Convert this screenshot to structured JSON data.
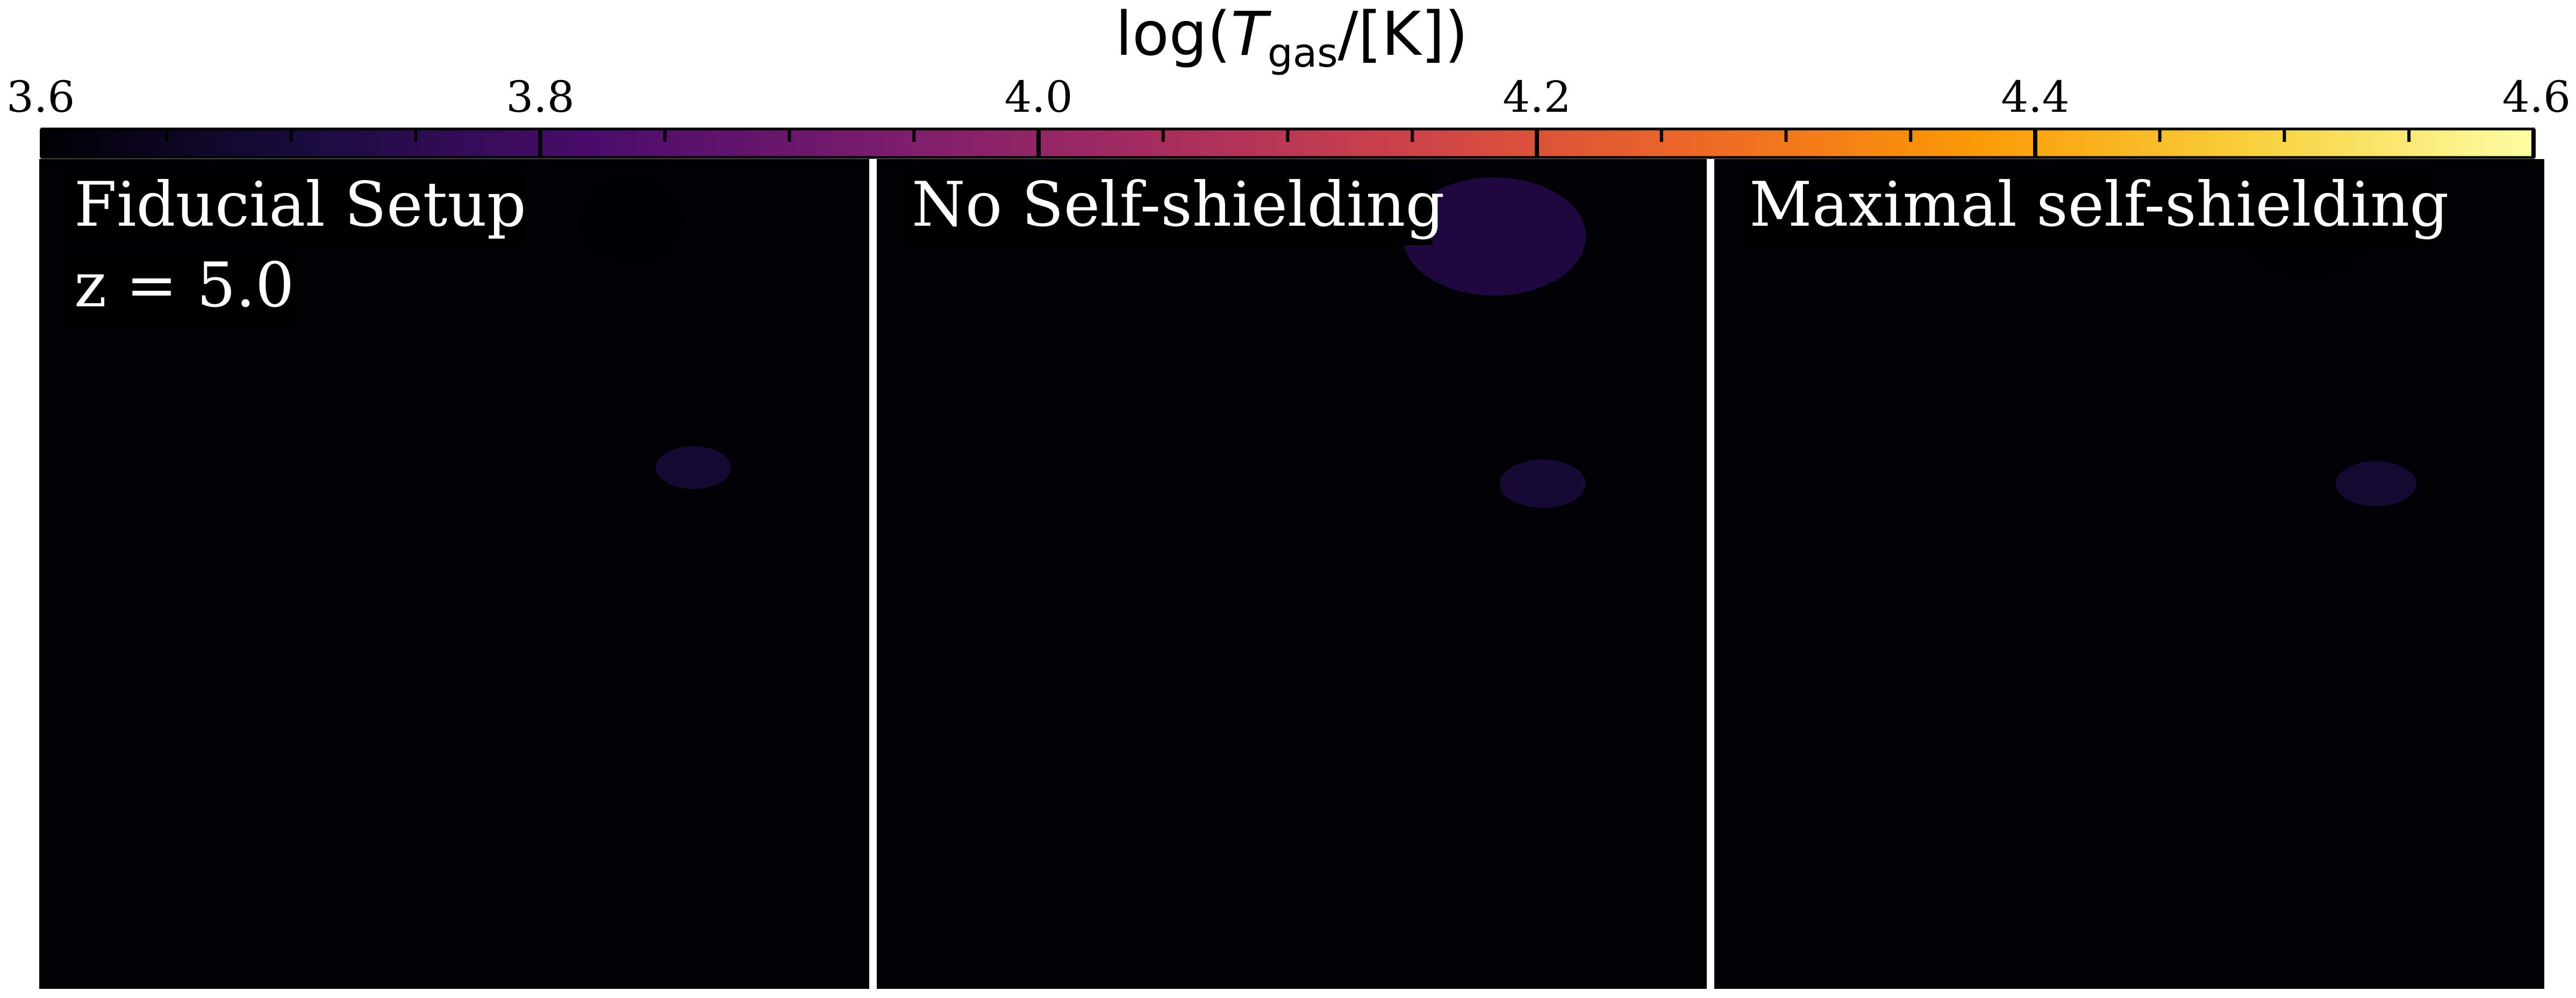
{
  "colorbar": {
    "label_main": "log(",
    "label_var": "T",
    "label_sub": "gas",
    "label_rest": "/[K])",
    "colormap": "inferno",
    "range": [
      3.6,
      4.6
    ],
    "major_ticks": [
      "3.6",
      "3.8",
      "4.0",
      "4.2",
      "4.4",
      "4.6"
    ],
    "major_values": [
      3.6,
      3.8,
      4.0,
      4.2,
      4.4,
      4.6
    ],
    "minor_values": [
      3.65,
      3.7,
      3.75,
      3.85,
      3.9,
      3.95,
      4.05,
      4.1,
      4.15,
      4.25,
      4.3,
      4.35,
      4.45,
      4.5,
      4.55
    ],
    "colors": [
      "#000004",
      "#1b0c41",
      "#4a0c6b",
      "#781c6d",
      "#a52c60",
      "#cf4446",
      "#ed6925",
      "#fb9b06",
      "#f7d13d",
      "#fcffa4"
    ]
  },
  "panels": [
    {
      "title": "Fiducial Setup",
      "redshift_label": "z = 5.0"
    },
    {
      "title": "No Self-shielding"
    },
    {
      "title": "Maximal self-shielding"
    }
  ]
}
